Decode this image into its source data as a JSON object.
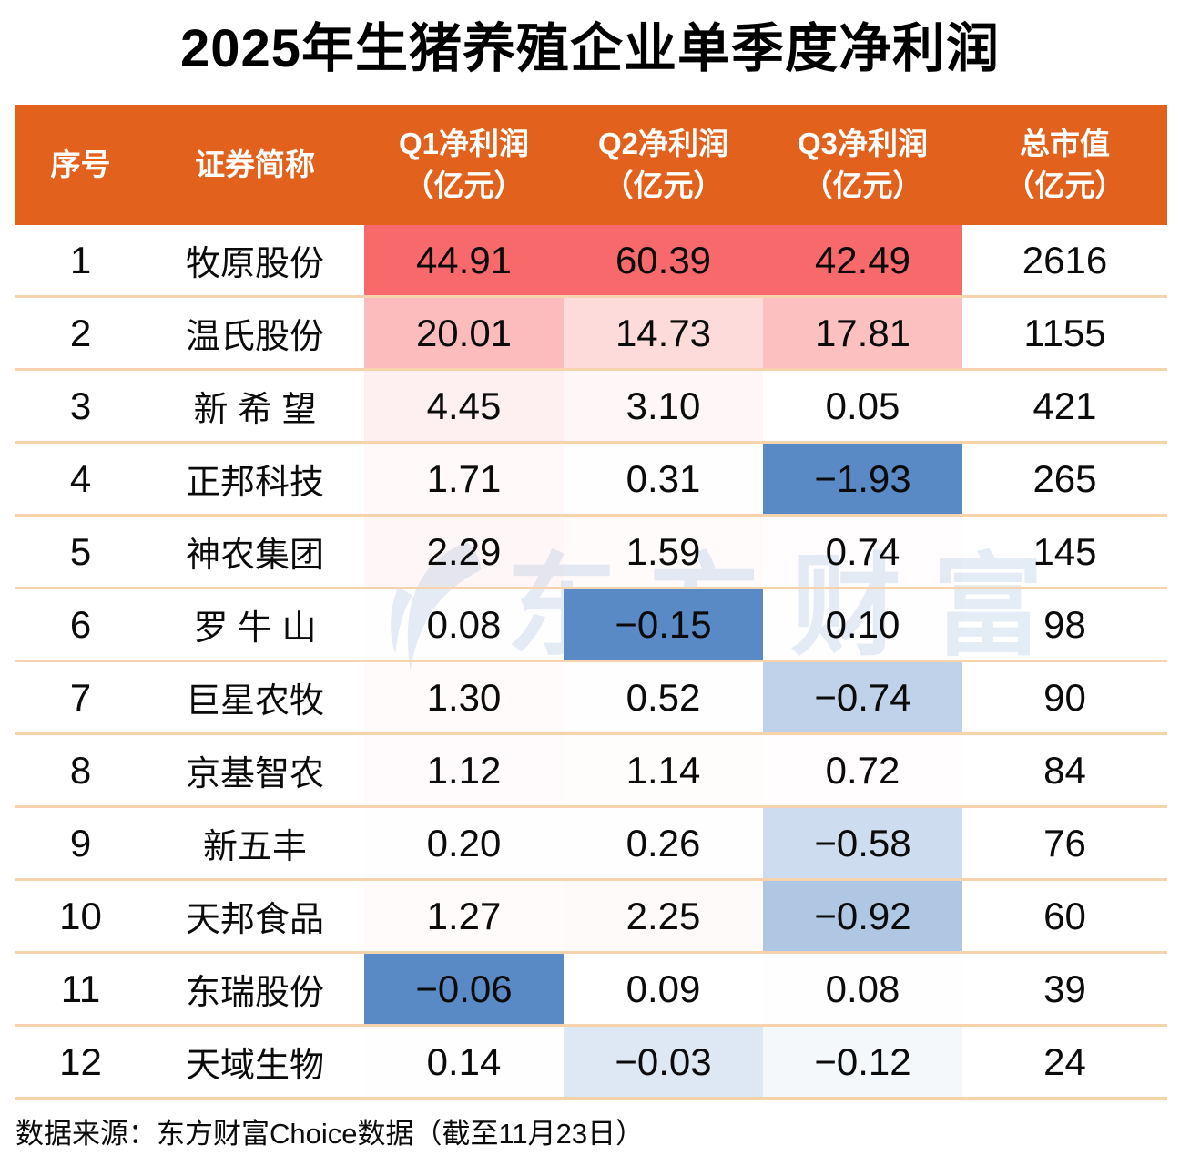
{
  "title": "2025年生猪养殖企业单季度净利润",
  "watermark_text": "东方财富",
  "source_note": "数据来源：东方财富Choice数据（截至11月23日）",
  "colors": {
    "header_bg": "#E2621D",
    "header_text": "#FFFFFF",
    "row_separator": "#F6D3AC",
    "title_text": "#000000",
    "cell_text": "#0B0B0B",
    "scale_positive": "#F8696B",
    "scale_negative": "#5A8AC6",
    "scale_zero": "#FCFCFF",
    "watermark": "#5A8AC6"
  },
  "table": {
    "columns": [
      {
        "key": "index",
        "label": "序号",
        "sub": ""
      },
      {
        "key": "name",
        "label": "证券简称",
        "sub": ""
      },
      {
        "key": "q1",
        "label": "Q1净利润",
        "sub": "（亿元）"
      },
      {
        "key": "q2",
        "label": "Q2净利润",
        "sub": "（亿元）"
      },
      {
        "key": "q3",
        "label": "Q3净利润",
        "sub": "（亿元）"
      },
      {
        "key": "cap",
        "label": "总市值",
        "sub": "（亿元）"
      }
    ],
    "rows": [
      {
        "index": "1",
        "name": "牧原股份",
        "q1": "44.91",
        "q2": "60.39",
        "q3": "42.49",
        "cap": "2616"
      },
      {
        "index": "2",
        "name": "温氏股份",
        "q1": "20.01",
        "q2": "14.73",
        "q3": "17.81",
        "cap": "1155"
      },
      {
        "index": "3",
        "name": "新 希 望",
        "q1": "4.45",
        "q2": "3.10",
        "q3": "0.05",
        "cap": "421"
      },
      {
        "index": "4",
        "name": "正邦科技",
        "q1": "1.71",
        "q2": "0.31",
        "q3": "−1.93",
        "cap": "265"
      },
      {
        "index": "5",
        "name": "神农集团",
        "q1": "2.29",
        "q2": "1.59",
        "q3": "0.74",
        "cap": "145"
      },
      {
        "index": "6",
        "name": "罗 牛 山",
        "q1": "0.08",
        "q2": "−0.15",
        "q3": "0.10",
        "cap": "98"
      },
      {
        "index": "7",
        "name": "巨星农牧",
        "q1": "1.30",
        "q2": "0.52",
        "q3": "−0.74",
        "cap": "90"
      },
      {
        "index": "8",
        "name": "京基智农",
        "q1": "1.12",
        "q2": "1.14",
        "q3": "0.72",
        "cap": "84"
      },
      {
        "index": "9",
        "name": "新五丰",
        "q1": "0.20",
        "q2": "0.26",
        "q3": "−0.58",
        "cap": "76"
      },
      {
        "index": "10",
        "name": "天邦食品",
        "q1": "1.27",
        "q2": "2.25",
        "q3": "−0.92",
        "cap": "60"
      },
      {
        "index": "11",
        "name": "东瑞股份",
        "q1": "−0.06",
        "q2": "0.09",
        "q3": "0.08",
        "cap": "39"
      },
      {
        "index": "12",
        "name": "天域生物",
        "q1": "0.14",
        "q2": "−0.03",
        "q3": "−0.12",
        "cap": "24"
      }
    ]
  },
  "chart_data": {
    "type": "table",
    "title": "2025年生猪养殖企业单季度净利润",
    "columns": [
      "序号",
      "证券简称",
      "Q1净利润（亿元）",
      "Q2净利润（亿元）",
      "Q3净利润（亿元）",
      "总市值（亿元）"
    ],
    "rows": [
      [
        1,
        "牧原股份",
        44.91,
        60.39,
        42.49,
        2616
      ],
      [
        2,
        "温氏股份",
        20.01,
        14.73,
        17.81,
        1155
      ],
      [
        3,
        "新希望",
        4.45,
        3.1,
        0.05,
        421
      ],
      [
        4,
        "正邦科技",
        1.71,
        0.31,
        -1.93,
        265
      ],
      [
        5,
        "神农集团",
        2.29,
        1.59,
        0.74,
        145
      ],
      [
        6,
        "罗牛山",
        0.08,
        -0.15,
        0.1,
        98
      ],
      [
        7,
        "巨星农牧",
        1.3,
        0.52,
        -0.74,
        90
      ],
      [
        8,
        "京基智农",
        1.12,
        1.14,
        0.72,
        84
      ],
      [
        9,
        "新五丰",
        0.2,
        0.26,
        -0.58,
        76
      ],
      [
        10,
        "天邦食品",
        1.27,
        2.25,
        -0.92,
        60
      ],
      [
        11,
        "东瑞股份",
        -0.06,
        0.09,
        0.08,
        39
      ],
      [
        12,
        "天域生物",
        0.14,
        -0.03,
        -0.12,
        24
      ]
    ],
    "conditional_formatting": {
      "applies_to": [
        "Q1净利润（亿元）",
        "Q2净利润（亿元）",
        "Q3净利润（亿元）"
      ],
      "scope": "per-column",
      "min_color": "#5A8AC6",
      "mid_color_at_zero": "#FCFCFF",
      "max_color": "#F8696B"
    },
    "source": "数据来源：东方财富Choice数据（截至11月23日）"
  }
}
